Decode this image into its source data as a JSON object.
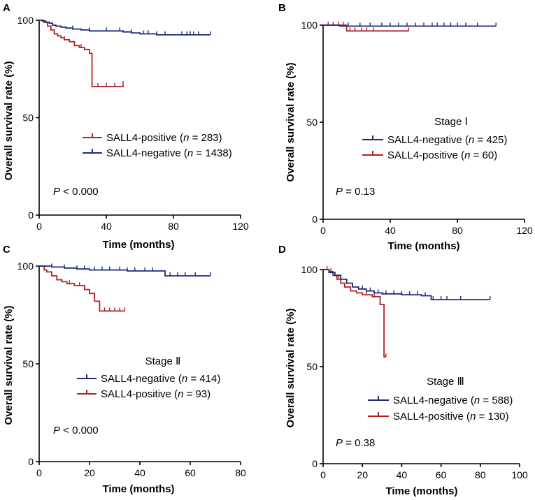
{
  "colors": {
    "positive": "#b22222",
    "negative": "#1f2a7a",
    "axis": "#000000"
  },
  "chart_data": [
    {
      "type": "line",
      "panel_label": "A",
      "stage_label": "",
      "xlabel": "Time (months)",
      "ylabel": "Overall survival rate (%)",
      "xlim": [
        0,
        120
      ],
      "ylim": [
        0,
        100
      ],
      "xticks": [
        0,
        40,
        80,
        120
      ],
      "yticks": [
        0,
        50,
        100
      ],
      "p_prefix": "P",
      "p_rest": " < 0.000",
      "legend": [
        {
          "series": "pos",
          "name": "SALL4-positive (",
          "n_label": "n",
          "n_rest": " = 283)"
        },
        {
          "series": "neg",
          "name": "SALL4-negative (",
          "n_label": "n",
          "n_rest": " = 1438)"
        }
      ],
      "series": [
        {
          "id": "pos",
          "name": "SALL4-positive",
          "n": 283,
          "x": [
            0,
            3,
            5,
            7,
            9,
            11,
            13,
            15,
            18,
            21,
            24,
            27,
            30,
            31.5,
            35,
            40,
            45,
            50
          ],
          "y": [
            100,
            99,
            97,
            95,
            93,
            92,
            91,
            90,
            89,
            87,
            86,
            85,
            83,
            66,
            66,
            66,
            66,
            67
          ],
          "censor": [
            15,
            25,
            35,
            40,
            45,
            50
          ]
        },
        {
          "id": "neg",
          "name": "SALL4-negative",
          "n": 1438,
          "x": [
            0,
            2,
            4,
            6,
            8,
            10,
            13,
            16,
            20,
            25,
            30,
            40,
            50,
            55,
            60,
            70,
            80,
            90,
            102
          ],
          "y": [
            100,
            99.5,
            99,
            98.5,
            97.5,
            97,
            96.5,
            96,
            95.5,
            95,
            94.5,
            94.5,
            94,
            93.5,
            93,
            92.5,
            92.5,
            92.5,
            92.5
          ],
          "censor": [
            20,
            30,
            40,
            48,
            55,
            62,
            65,
            70,
            75,
            85,
            88,
            90,
            92,
            95,
            102
          ]
        }
      ]
    },
    {
      "type": "line",
      "panel_label": "B",
      "stage_label": "Stage Ⅰ",
      "xlabel": "Time (months)",
      "ylabel": "Overall survival rate (%)",
      "xlim": [
        0,
        120
      ],
      "ylim": [
        0,
        100
      ],
      "xticks": [
        0,
        40,
        80,
        120
      ],
      "yticks": [
        0,
        50,
        100
      ],
      "p_prefix": "P",
      "p_rest": " = 0.13",
      "legend": [
        {
          "series": "neg",
          "name": "SALL4-negative (",
          "n_label": "n",
          "n_rest": " = 425)"
        },
        {
          "series": "pos",
          "name": "SALL4-positive (",
          "n_label": "n",
          "n_rest": " = 60)"
        }
      ],
      "series": [
        {
          "id": "pos",
          "name": "SALL4-positive",
          "n": 60,
          "x": [
            0,
            14,
            20,
            30,
            40,
            51
          ],
          "y": [
            100,
            97,
            97,
            97,
            97,
            97
          ],
          "censor": [
            3,
            6,
            9,
            12,
            16,
            19,
            23,
            26,
            30,
            51
          ]
        },
        {
          "id": "neg",
          "name": "SALL4-negative",
          "n": 425,
          "x": [
            0,
            10,
            40,
            103
          ],
          "y": [
            100,
            99.5,
            99.5,
            99.5
          ],
          "censor": [
            15,
            22,
            28,
            35,
            40,
            45,
            50,
            55,
            60,
            65,
            68,
            72,
            76,
            80,
            85,
            92,
            103
          ]
        }
      ]
    },
    {
      "type": "line",
      "panel_label": "C",
      "stage_label": "Stage Ⅱ",
      "xlabel": "Time (months)",
      "ylabel": "Overall survival rate (%)",
      "xlim": [
        0,
        80
      ],
      "ylim": [
        0,
        100
      ],
      "xticks": [
        0,
        20,
        40,
        60,
        80
      ],
      "yticks": [
        0,
        50,
        100
      ],
      "p_prefix": "P",
      "p_rest": " < 0.000",
      "legend": [
        {
          "series": "neg",
          "name": "SALL4-negative (",
          "n_label": "n",
          "n_rest": " = 414)"
        },
        {
          "series": "pos",
          "name": "SALL4-positive (",
          "n_label": "n",
          "n_rest": " = 93)"
        }
      ],
      "series": [
        {
          "id": "pos",
          "name": "SALL4-positive",
          "n": 93,
          "x": [
            0,
            2,
            3,
            5,
            7,
            9,
            11,
            14,
            18,
            20,
            22,
            24,
            26,
            30,
            34
          ],
          "y": [
            100,
            98,
            97,
            95,
            93,
            92,
            91,
            90,
            88,
            86,
            82,
            77,
            77,
            77,
            77
          ],
          "censor": [
            12,
            16,
            20,
            24,
            26,
            28,
            30,
            32,
            34
          ]
        },
        {
          "id": "neg",
          "name": "SALL4-negative",
          "n": 414,
          "x": [
            0,
            5,
            10,
            15,
            20,
            25,
            30,
            35,
            40,
            48,
            50,
            55,
            60,
            68
          ],
          "y": [
            100,
            99.5,
            99,
            98.5,
            98,
            98,
            98,
            97.5,
            97.5,
            97.5,
            95,
            95,
            95,
            95
          ],
          "censor": [
            5,
            10,
            15,
            18,
            22,
            25,
            28,
            32,
            35,
            38,
            42,
            45,
            52,
            55,
            58,
            62,
            68
          ]
        }
      ]
    },
    {
      "type": "line",
      "panel_label": "D",
      "stage_label": "Stage Ⅲ",
      "xlabel": "Time (months)",
      "ylabel": "Overall survival rate (%)",
      "xlim": [
        0,
        100
      ],
      "ylim": [
        0,
        100
      ],
      "xticks": [
        0,
        20,
        40,
        60,
        80,
        100
      ],
      "yticks": [
        0,
        50,
        100
      ],
      "p_prefix": "P",
      "p_rest": " = 0.38",
      "legend": [
        {
          "series": "neg",
          "name": "SALL4-negative (",
          "n_label": "n",
          "n_rest": " = 588)"
        },
        {
          "series": "pos",
          "name": "SALL4-positive (",
          "n_label": "n",
          "n_rest": " = 130)"
        }
      ],
      "series": [
        {
          "id": "pos",
          "name": "SALL4-positive",
          "n": 130,
          "x": [
            0,
            3,
            5,
            7,
            9,
            11,
            14,
            17,
            20,
            25,
            29,
            31,
            32
          ],
          "y": [
            100,
            99,
            97,
            95,
            93,
            91,
            89,
            88,
            87,
            86,
            82,
            55,
            55
          ],
          "censor": [
            2,
            4,
            6,
            8,
            22,
            26,
            29,
            32
          ]
        },
        {
          "id": "neg",
          "name": "SALL4-negative",
          "n": 588,
          "x": [
            0,
            3,
            6,
            9,
            12,
            15,
            18,
            22,
            26,
            30,
            40,
            50,
            55,
            60,
            70,
            85
          ],
          "y": [
            100,
            98.5,
            97,
            95,
            93,
            91,
            90,
            89,
            88,
            87.5,
            87,
            86.5,
            84.5,
            84.5,
            84.5,
            84.5
          ],
          "censor": [
            15,
            20,
            24,
            28,
            32,
            36,
            40,
            44,
            48,
            52,
            56,
            60,
            63,
            70,
            85
          ]
        }
      ]
    }
  ]
}
